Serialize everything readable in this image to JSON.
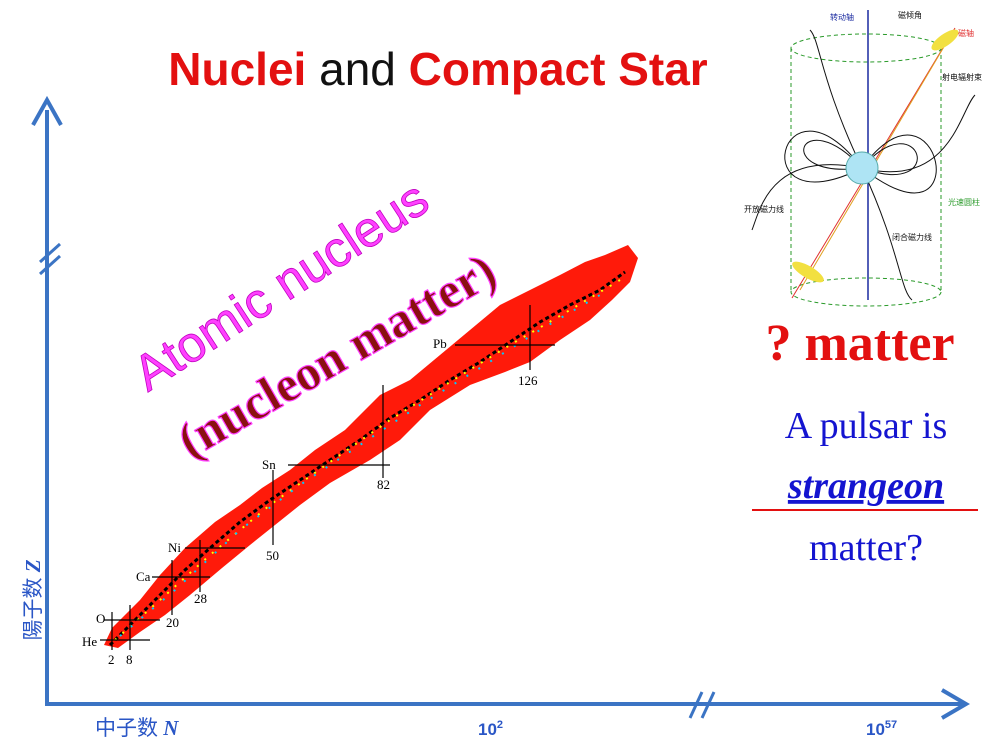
{
  "title": {
    "parts": [
      "Nuclei",
      "and",
      "Compact Star"
    ]
  },
  "nuclear_chart": {
    "label": "Atomic nucleus",
    "sublabel": "(nucleon matter)",
    "elements": [
      "He",
      "O",
      "Ca",
      "Ni",
      "Sn",
      "Pb"
    ],
    "magic_numbers": [
      "2",
      "8",
      "20",
      "28",
      "50",
      "82",
      "126"
    ]
  },
  "axes": {
    "y_label": {
      "text": "陽子数",
      "symbol": "Z"
    },
    "x_label": {
      "text": "中子数",
      "symbol": "N"
    },
    "x_ticks": [
      {
        "base": "10",
        "exp": "2"
      },
      {
        "base": "10",
        "exp": "57"
      }
    ]
  },
  "pulsar": {
    "diagram_labels": [
      "转动轴",
      "磁倾角",
      "磁轴",
      "射电辐射束",
      "开放磁力线",
      "闭合磁力线",
      "光速圆柱"
    ],
    "heading": "? matter",
    "question": [
      "A pulsar is",
      "strangeon",
      "matter?"
    ]
  }
}
